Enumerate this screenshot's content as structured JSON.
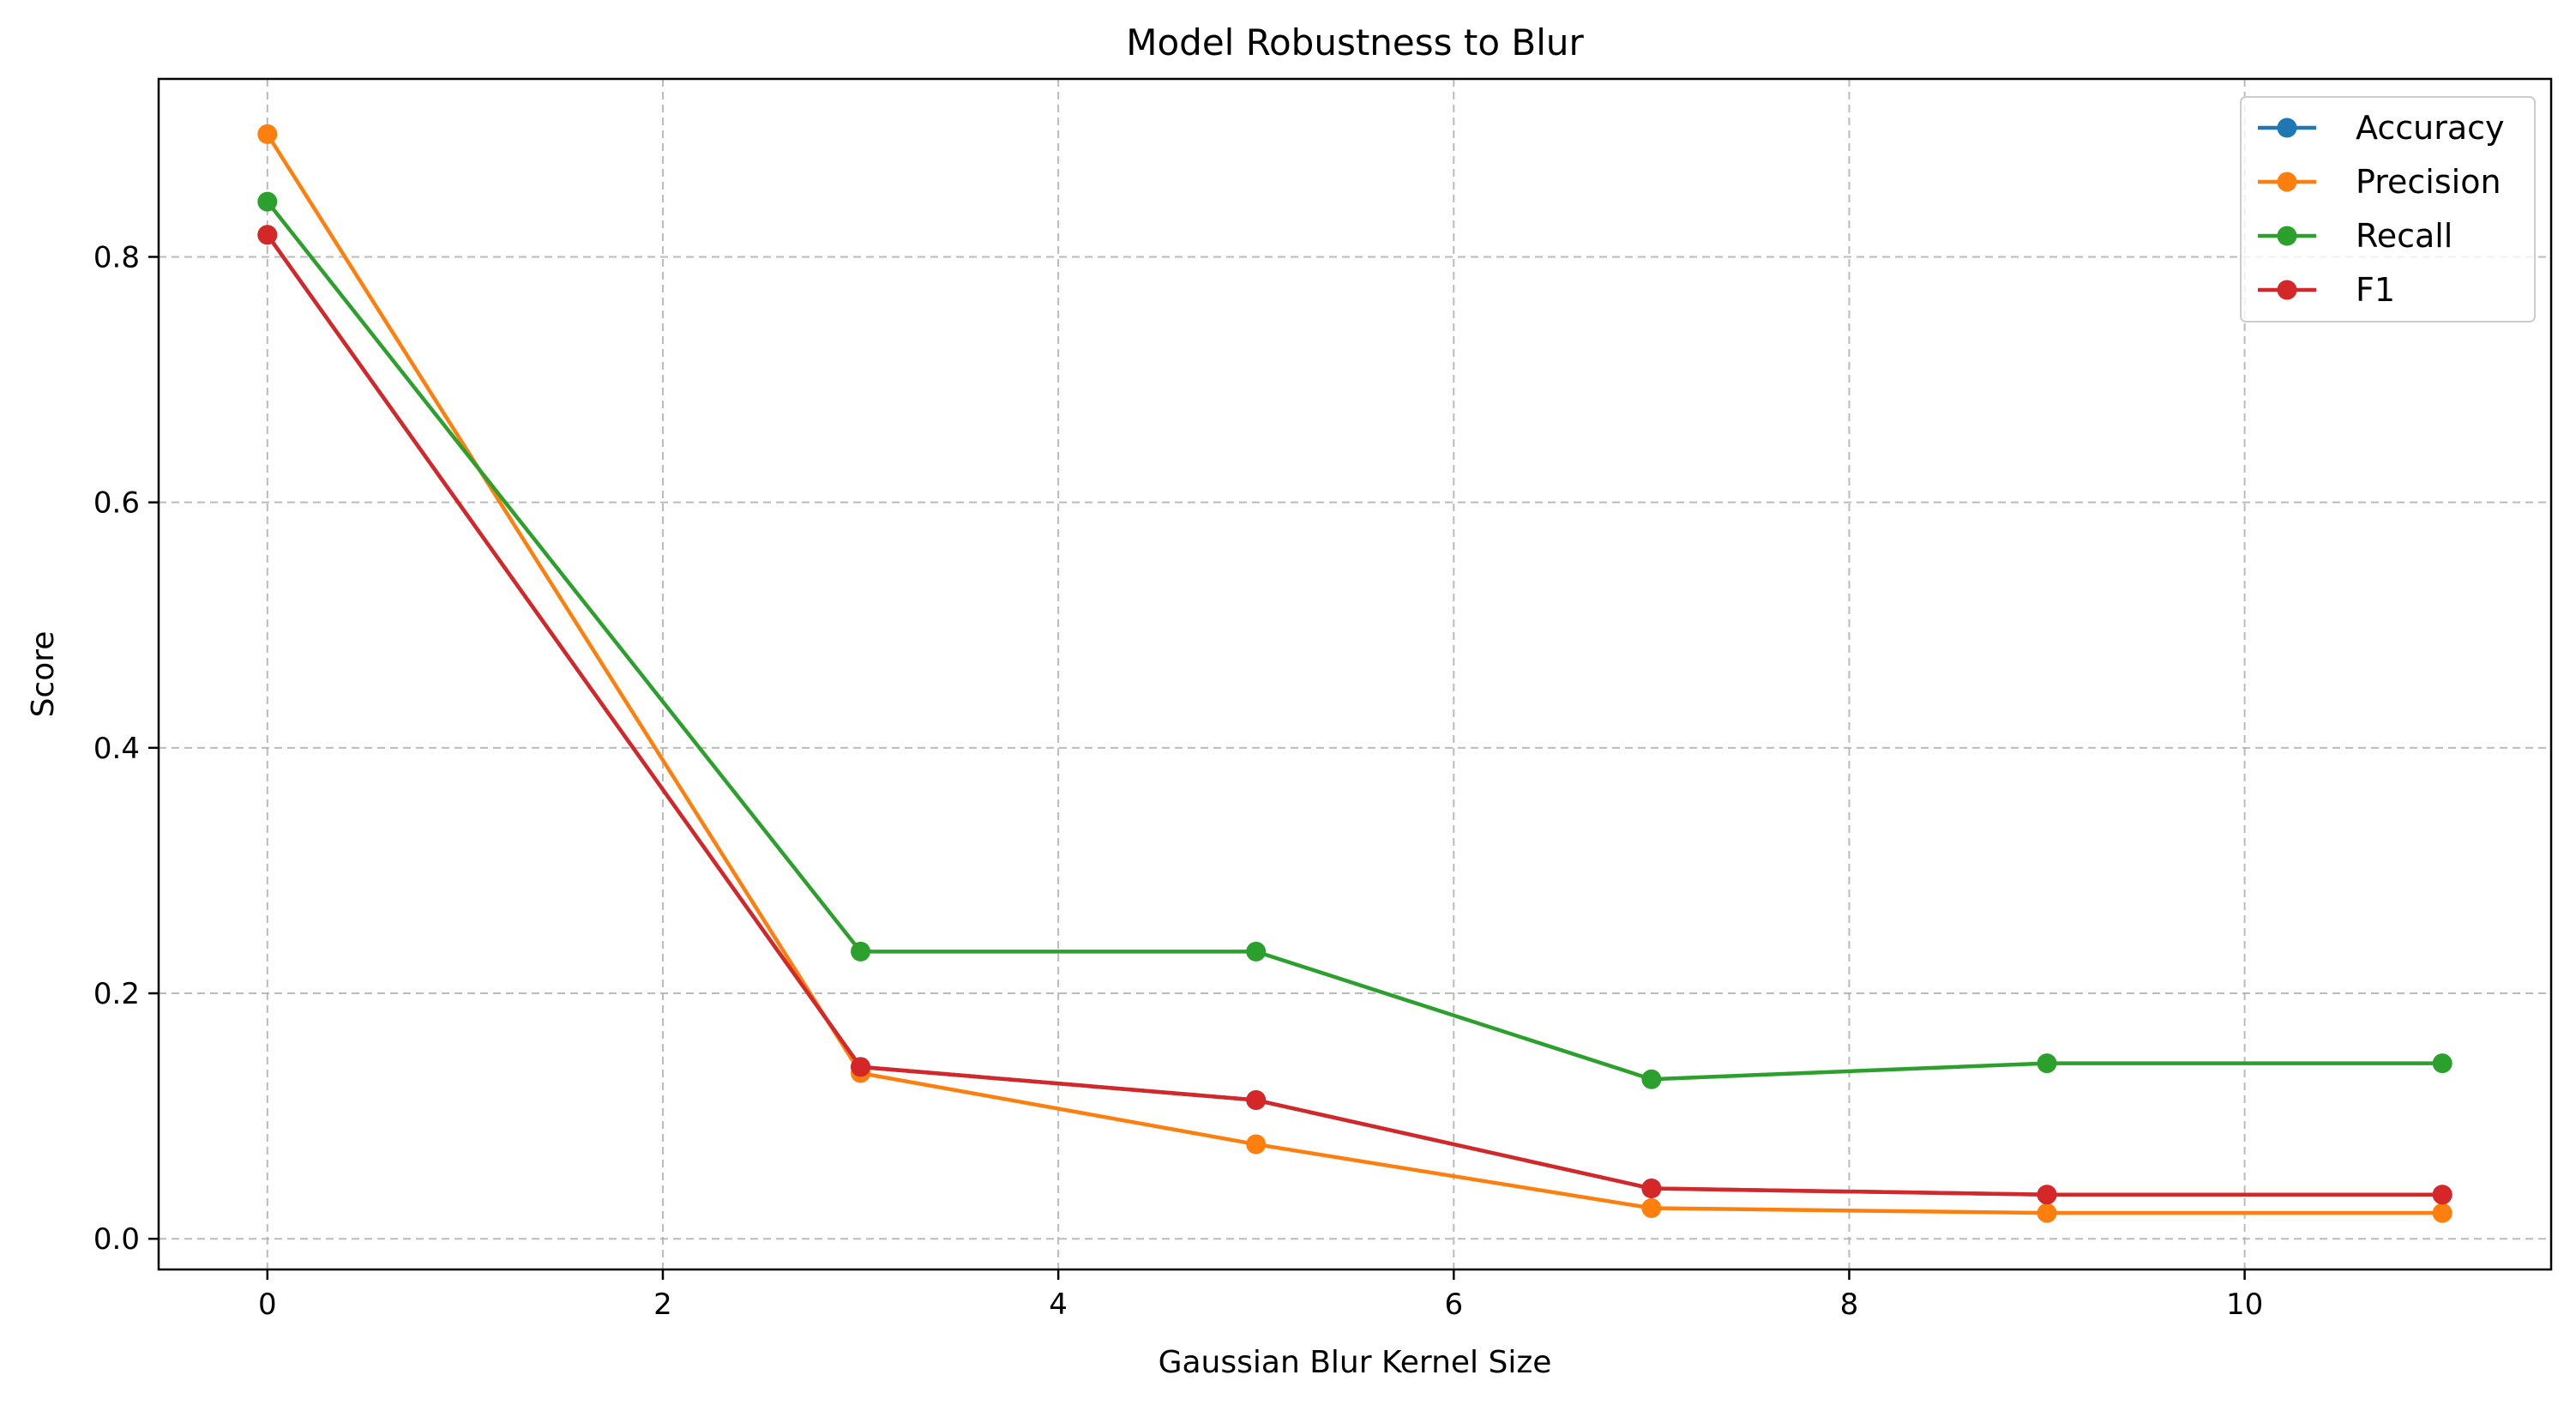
{
  "chart_data": {
    "type": "line",
    "title": "Model Robustness to Blur",
    "xlabel": "Gaussian Blur Kernel Size",
    "ylabel": "Score",
    "xlim": [
      -0.55,
      11.55
    ],
    "ylim": [
      -0.025,
      0.945
    ],
    "xticks": [
      0,
      2,
      4,
      6,
      8,
      10
    ],
    "yticks": [
      0.0,
      0.2,
      0.4,
      0.6,
      0.8
    ],
    "xtick_labels": [
      "0",
      "2",
      "4",
      "6",
      "8",
      "10"
    ],
    "ytick_labels": [
      "0.0",
      "0.2",
      "0.4",
      "0.6",
      "0.8"
    ],
    "grid": true,
    "legend_position": "top-right",
    "x": [
      0,
      3,
      5,
      7,
      9,
      11
    ],
    "series": [
      {
        "name": "Accuracy",
        "color": "#1f77b4",
        "values": [
          0.818,
          0.14,
          0.113,
          0.041,
          0.036,
          0.036
        ]
      },
      {
        "name": "Precision",
        "color": "#ff7f0e",
        "values": [
          0.9,
          0.135,
          0.077,
          0.025,
          0.021,
          0.021
        ]
      },
      {
        "name": "Recall",
        "color": "#2ca02c",
        "values": [
          0.845,
          0.234,
          0.234,
          0.13,
          0.143,
          0.143
        ]
      },
      {
        "name": "F1",
        "color": "#d62728",
        "values": [
          0.818,
          0.14,
          0.113,
          0.041,
          0.036,
          0.036
        ]
      }
    ]
  }
}
